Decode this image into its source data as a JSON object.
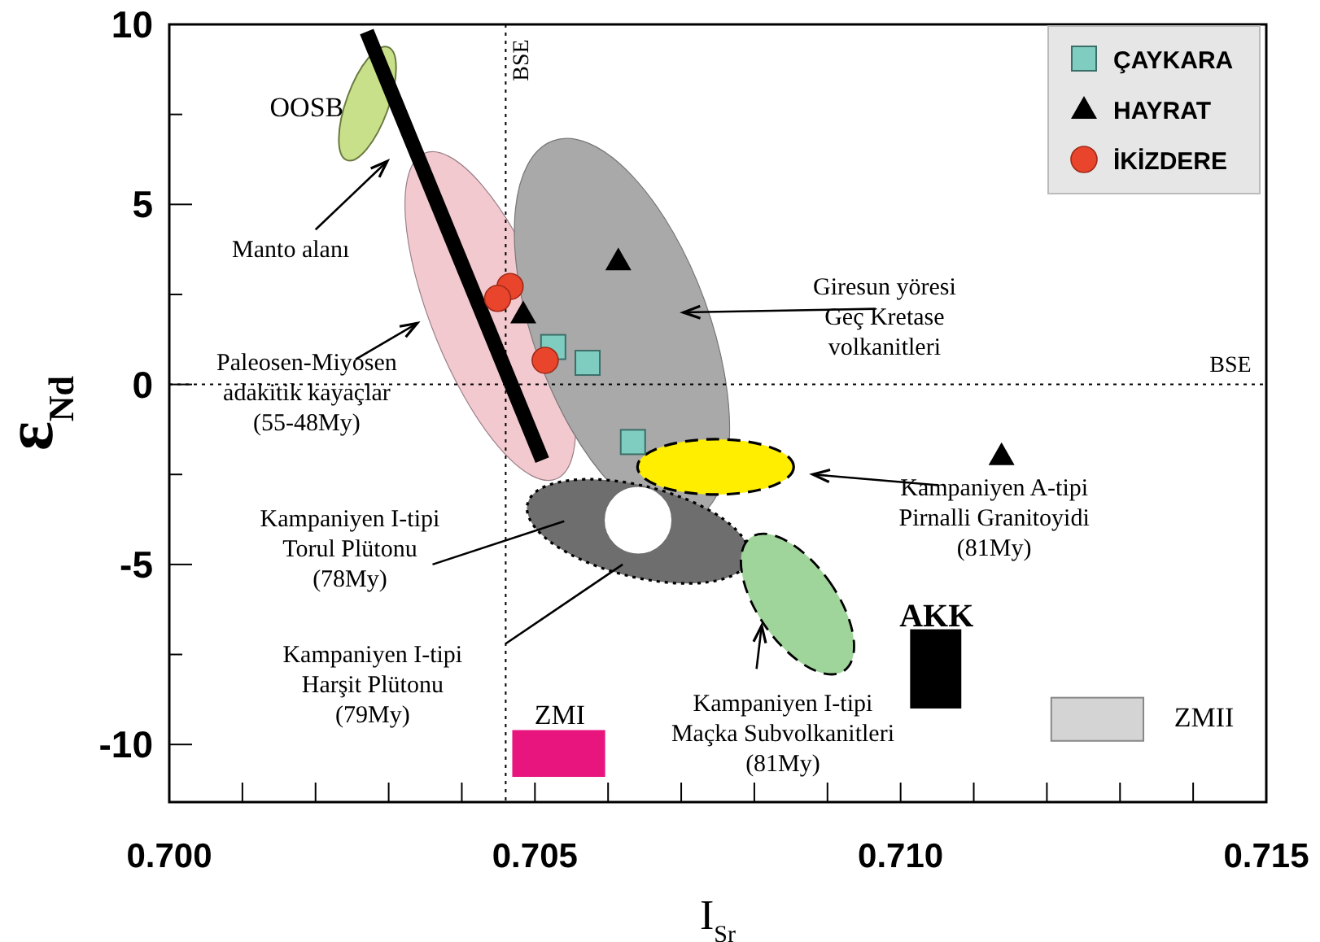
{
  "chart_data": {
    "type": "scatter",
    "xlabel": "I$_{Sr}$",
    "ylabel": "ε$_{Nd}$",
    "xlim": [
      0.7,
      0.715
    ],
    "ylim": [
      -11.6,
      10
    ],
    "xticks": [
      {
        "value": 0.7,
        "label": "0.700"
      },
      {
        "value": 0.701,
        "label": null
      },
      {
        "value": 0.702,
        "label": null
      },
      {
        "value": 0.703,
        "label": null
      },
      {
        "value": 0.704,
        "label": null
      },
      {
        "value": 0.705,
        "label": "0.705"
      },
      {
        "value": 0.706,
        "label": null
      },
      {
        "value": 0.707,
        "label": null
      },
      {
        "value": 0.708,
        "label": null
      },
      {
        "value": 0.709,
        "label": null
      },
      {
        "value": 0.71,
        "label": "0.710"
      },
      {
        "value": 0.711,
        "label": null
      },
      {
        "value": 0.712,
        "label": null
      },
      {
        "value": 0.713,
        "label": null
      },
      {
        "value": 0.714,
        "label": null
      },
      {
        "value": 0.715,
        "label": "0.715"
      }
    ],
    "yticks": [
      10,
      {
        "value": 7.5,
        "label": null
      },
      5,
      {
        "value": 2.5,
        "label": null
      },
      0,
      {
        "value": -2.5,
        "label": null
      },
      -5,
      {
        "value": -7.5,
        "label": null
      },
      -10
    ],
    "legend": "top right",
    "ref_lines": [
      {
        "axis": "x",
        "value": 0.7046,
        "label": "BSE",
        "line_style": "dotted"
      },
      {
        "axis": "y",
        "value": 0,
        "label": "BSE",
        "line_style": "dotted"
      }
    ],
    "series": [
      {
        "type": "line",
        "color": "#000000",
        "x": [
          0.7027,
          0.7051
        ],
        "values": [
          9.8,
          -2.1
        ],
        "marker": "none"
      },
      {
        "name": "ÇAYKARA",
        "color": "#7fcdc0",
        "marker": "square",
        "x": [
          0.70525,
          0.70572,
          0.70634
        ],
        "values": [
          1.04,
          0.6,
          -1.6
        ]
      },
      {
        "name": "HAYRAT",
        "color": "#000000",
        "marker": "triangle",
        "x": [
          0.70614,
          0.70484,
          0.71138
        ],
        "values": [
          3.44,
          1.97,
          -1.97
        ]
      },
      {
        "name": "İKİZDERE",
        "color": "#e8452c",
        "marker": "circle",
        "x": [
          0.70466,
          0.70449,
          0.70514
        ],
        "values": [
          2.72,
          2.39,
          0.67
        ]
      }
    ],
    "annotations": [
      "OOSB",
      "Manto alanı",
      "Paleosen-Miyosen\nadakitik kayaçlar\n(55-48My)",
      "Giresun yöresi\nGeç Kretase\nvolkanitleri",
      "Kampaniyen A-tipi\nPirnalli Granitoyidi\n(81My)",
      "Kampaniyen I-tipi\nTorul Plütonu\n(78My)",
      "Kampaniyen I-tipi\nHarşit Plütonu\n(79My)",
      "Kampaniyen I-tipi\nMaçka Subvolkanitleri\n(81My)",
      "AKK",
      "ZMI",
      "ZMII"
    ]
  }
}
